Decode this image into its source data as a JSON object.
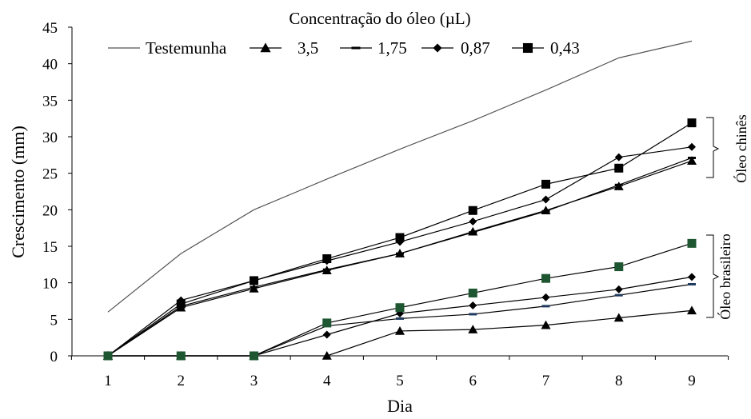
{
  "chart_data": {
    "type": "line",
    "legend": {
      "title": "Concentração do óleo (µL)",
      "entries": [
        {
          "label": "Testemunha",
          "marker": "none"
        },
        {
          "label": "3,5",
          "marker": "triangle"
        },
        {
          "label": "1,75",
          "marker": "dash"
        },
        {
          "label": "0,87",
          "marker": "diamond"
        },
        {
          "label": "0,43",
          "marker": "square"
        }
      ],
      "placement": "top"
    },
    "xlabel": "Dia",
    "ylabel": "Crescimento (mm)",
    "x": [
      1,
      2,
      3,
      4,
      5,
      6,
      7,
      8,
      9
    ],
    "xlim": [
      1,
      9
    ],
    "ylim": [
      0,
      45
    ],
    "yticks": [
      0,
      5,
      10,
      15,
      20,
      25,
      30,
      35,
      40,
      45
    ],
    "grid": false,
    "series": [
      {
        "name": "Testemunha",
        "group": "",
        "marker": "none",
        "color": "#000000",
        "values": [
          6,
          14,
          20,
          24.2,
          28.3,
          32.2,
          36.4,
          40.8,
          43.1
        ]
      },
      {
        "name": "3,5",
        "group": "chines",
        "marker": "triangle",
        "color": "#000000",
        "values": [
          0,
          6.6,
          9.2,
          11.7,
          14,
          17,
          19.9,
          23.2,
          26.7
        ]
      },
      {
        "name": "1,75",
        "group": "chines",
        "marker": "dash",
        "color": "#000000",
        "values": [
          0,
          6.8,
          9.4,
          11.8,
          14,
          16.9,
          19.8,
          23.4,
          27.1
        ]
      },
      {
        "name": "0,87",
        "group": "chines",
        "marker": "diamond",
        "color": "#000000",
        "values": [
          0,
          7.6,
          10.3,
          13,
          15.6,
          18.4,
          21.4,
          27.2,
          28.6
        ]
      },
      {
        "name": "0,43",
        "group": "chines",
        "marker": "square",
        "color": "#000000",
        "values": [
          0,
          7.1,
          10.3,
          13.3,
          16.2,
          19.9,
          23.5,
          25.7,
          31.9
        ]
      },
      {
        "name": "3,5",
        "group": "brasileiro",
        "marker": "triangle",
        "color": "#000000",
        "values": [
          0,
          0,
          0,
          0,
          3.4,
          3.6,
          4.2,
          5.2,
          6.2
        ]
      },
      {
        "name": "1,75",
        "group": "brasileiro",
        "marker": "dash",
        "color": "#1f3a5c",
        "values": [
          0,
          0,
          0,
          4.1,
          5.1,
          5.7,
          6.8,
          8.3,
          9.8
        ]
      },
      {
        "name": "0,87",
        "group": "brasileiro",
        "marker": "diamond",
        "color": "#000000",
        "values": [
          0,
          0,
          0,
          2.9,
          5.8,
          6.9,
          8,
          9.1,
          10.8
        ]
      },
      {
        "name": "0,43",
        "group": "brasileiro",
        "marker": "square",
        "color": "#1e5631",
        "values": [
          0,
          0,
          0,
          4.5,
          6.6,
          8.6,
          10.6,
          12.2,
          15.4
        ]
      }
    ],
    "group_labels": {
      "chines": "Óleo chinês",
      "brasileiro": "Óleo brasileiro"
    }
  }
}
